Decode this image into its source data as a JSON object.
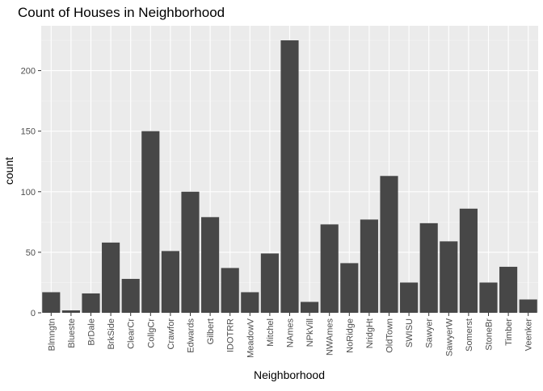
{
  "colors": {
    "panel_bg": "#EBEBEB",
    "grid_major": "#FFFFFF",
    "grid_minor": "#F5F5F5",
    "bar_fill": "#474747",
    "tick_text": "#4D4D4D",
    "axis_text": "#000000",
    "page_bg": "#FFFFFF"
  },
  "chart_data": {
    "type": "bar",
    "title": "Count of Houses in Neighborhood",
    "xlabel": "Neighborhood",
    "ylabel": "count",
    "ylim": [
      0,
      237
    ],
    "yticks": [
      0,
      50,
      100,
      150,
      200
    ],
    "grid": true,
    "legend": "none",
    "categories": [
      "Blmngtn",
      "Blueste",
      "BrDale",
      "BrkSide",
      "ClearCr",
      "CollgCr",
      "Crawfor",
      "Edwards",
      "Gilbert",
      "IDOTRR",
      "MeadowV",
      "Mitchel",
      "NAmes",
      "NPkVill",
      "NWAmes",
      "NoRidge",
      "NridgHt",
      "OldTown",
      "SWISU",
      "Sawyer",
      "SawyerW",
      "Somerst",
      "StoneBr",
      "Timber",
      "Veenker"
    ],
    "values": [
      17,
      2,
      16,
      58,
      28,
      150,
      51,
      100,
      79,
      37,
      17,
      49,
      225,
      9,
      73,
      41,
      77,
      113,
      25,
      74,
      59,
      86,
      25,
      38,
      11
    ]
  }
}
